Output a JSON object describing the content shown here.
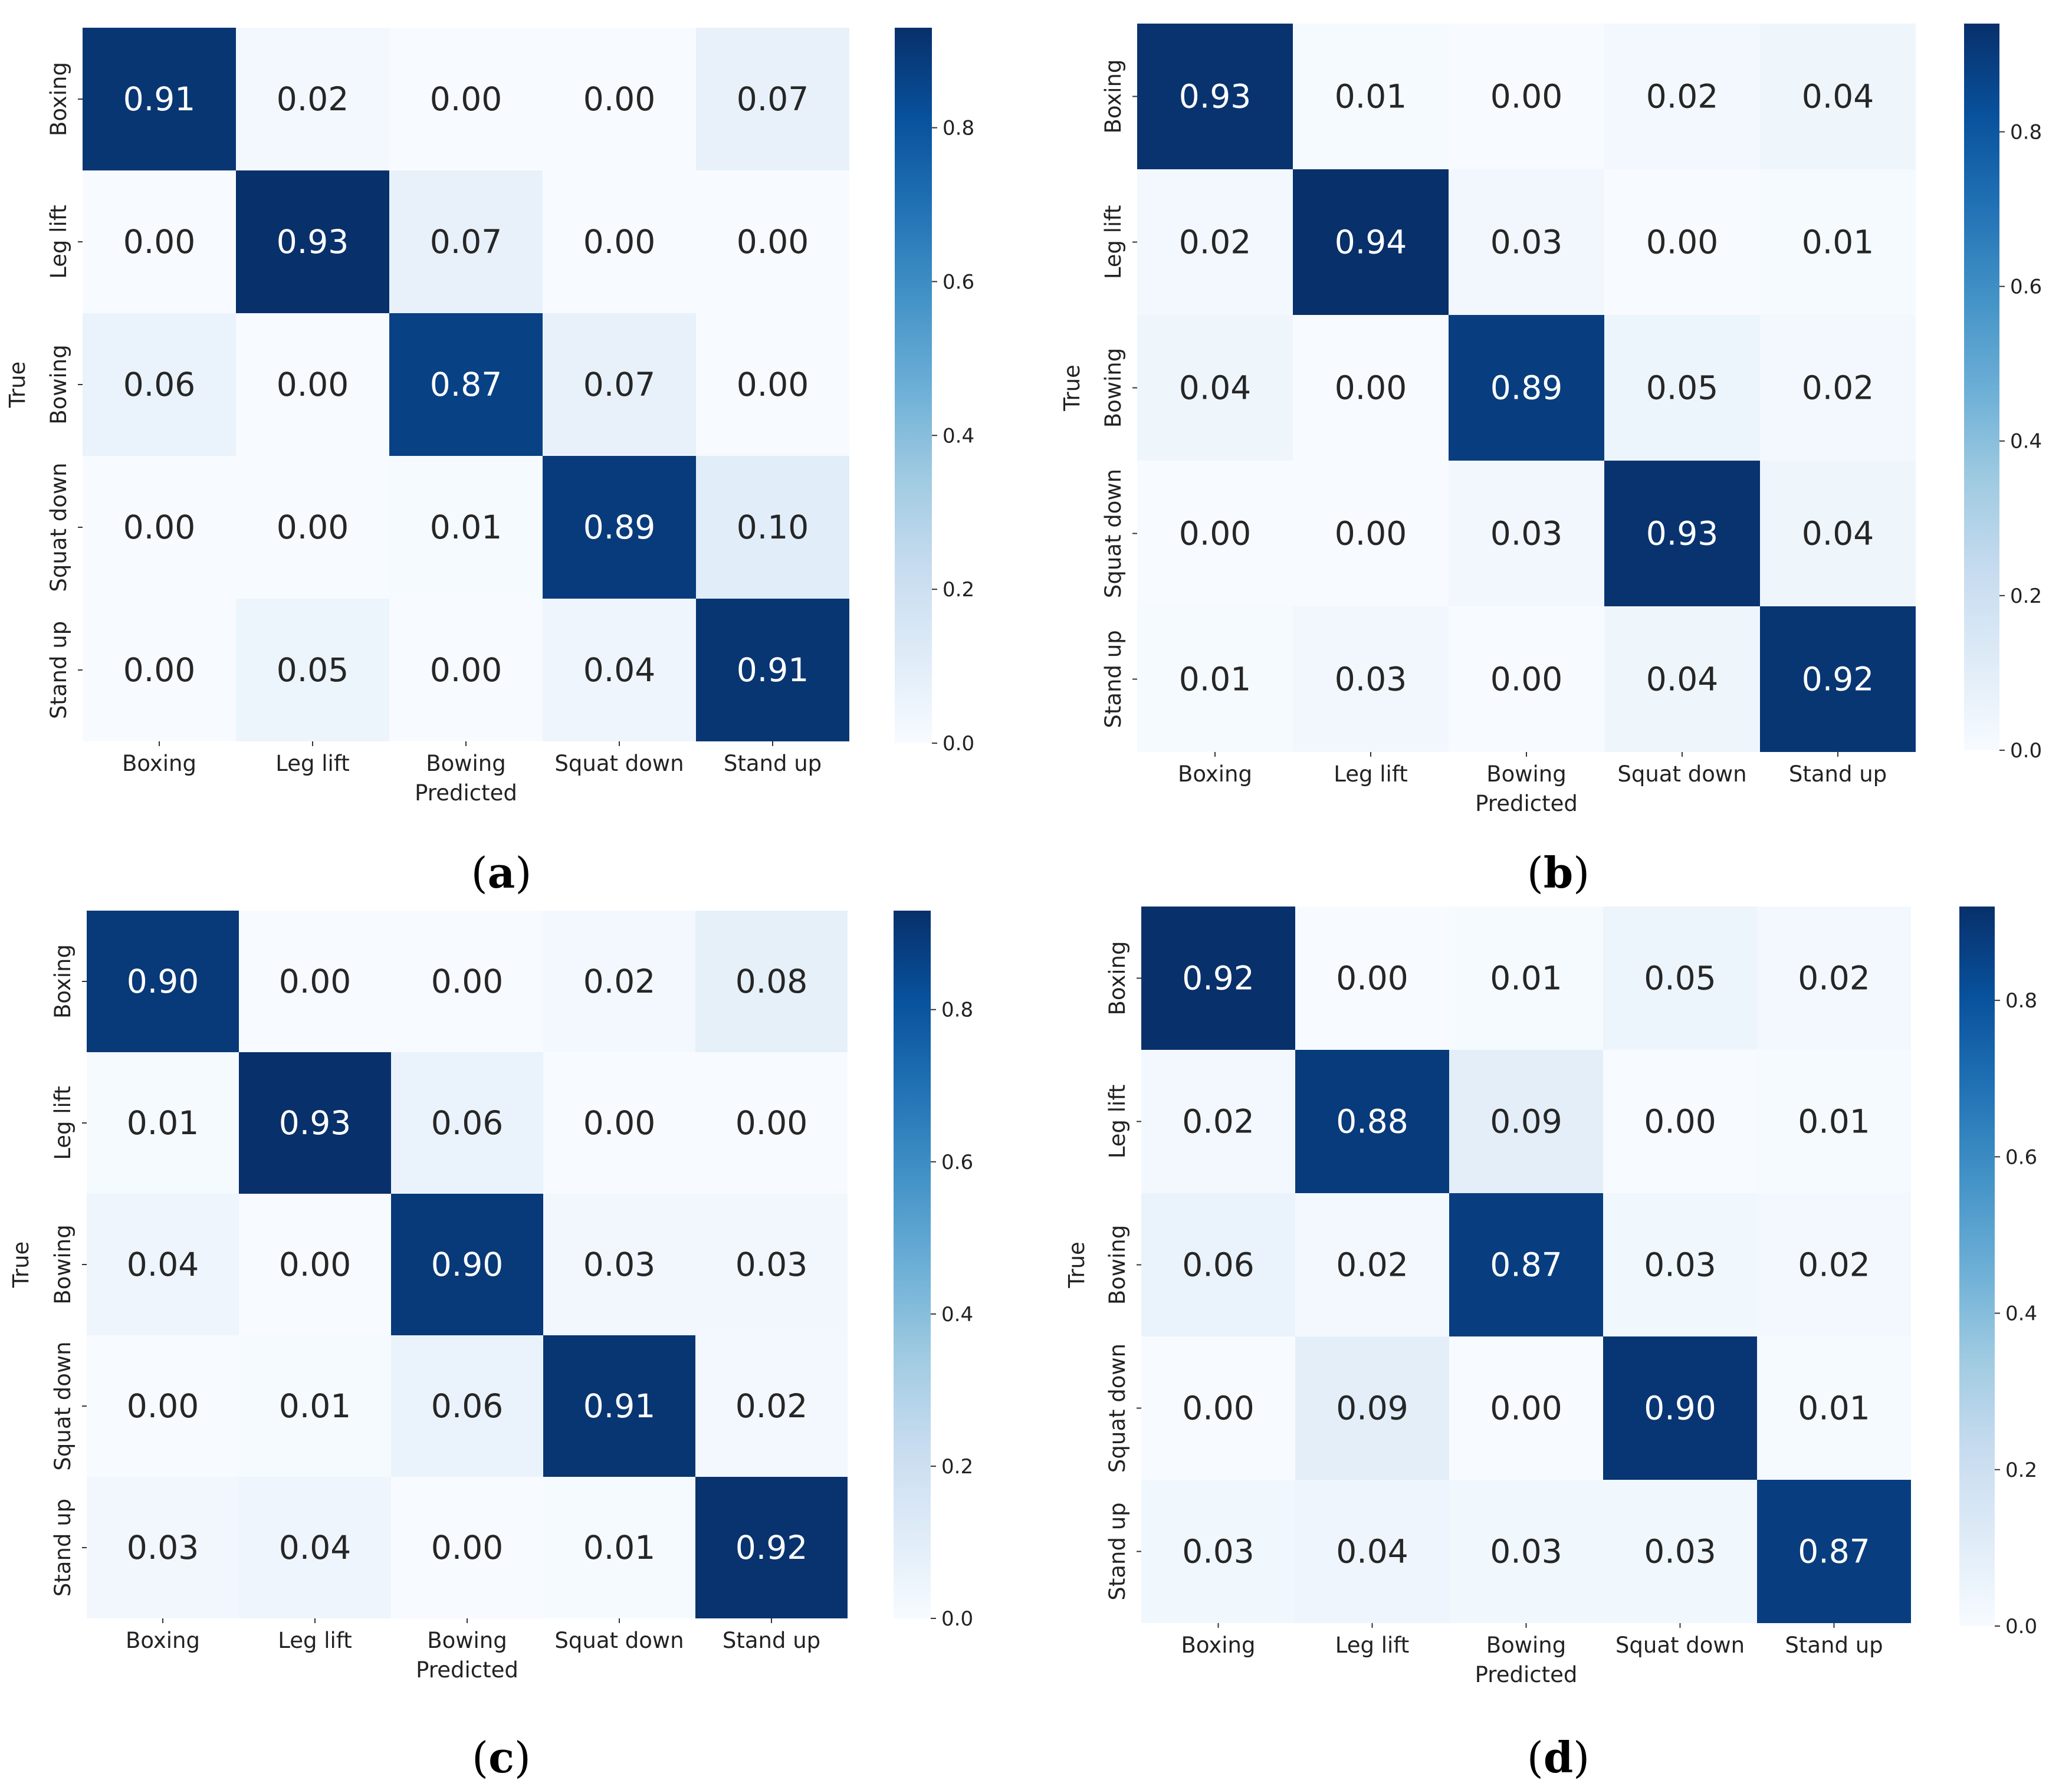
{
  "colors": {
    "low": "#f7fbff",
    "high": "#08306b",
    "text_dark": "#262626",
    "text_light": "#ffffff"
  },
  "chart_data": [
    {
      "type": "heatmap",
      "panel": "a",
      "caption": "(a)",
      "xlabel": "Predicted",
      "ylabel": "True",
      "categories": [
        "Boxing",
        "Leg lift",
        "Bowing",
        "Squat down",
        "Stand up"
      ],
      "values": [
        [
          0.91,
          0.02,
          0.0,
          0.0,
          0.07
        ],
        [
          0.0,
          0.93,
          0.07,
          0.0,
          0.0
        ],
        [
          0.06,
          0.0,
          0.87,
          0.07,
          0.0
        ],
        [
          0.0,
          0.0,
          0.01,
          0.89,
          0.1
        ],
        [
          0.0,
          0.05,
          0.0,
          0.04,
          0.91
        ]
      ],
      "colorbar_ticks": [
        "0.0",
        "0.2",
        "0.4",
        "0.6",
        "0.8"
      ],
      "colorbar_range": [
        0,
        0.93
      ]
    },
    {
      "type": "heatmap",
      "panel": "b",
      "caption": "(b)",
      "xlabel": "Predicted",
      "ylabel": "True",
      "categories": [
        "Boxing",
        "Leg lift",
        "Bowing",
        "Squat down",
        "Stand up"
      ],
      "values": [
        [
          0.93,
          0.01,
          0.0,
          0.02,
          0.04
        ],
        [
          0.02,
          0.94,
          0.03,
          0.0,
          0.01
        ],
        [
          0.04,
          0.0,
          0.89,
          0.05,
          0.02
        ],
        [
          0.0,
          0.0,
          0.03,
          0.93,
          0.04
        ],
        [
          0.01,
          0.03,
          0.0,
          0.04,
          0.92
        ]
      ],
      "colorbar_ticks": [
        "0.0",
        "0.2",
        "0.4",
        "0.6",
        "0.8"
      ],
      "colorbar_range": [
        0,
        0.94
      ]
    },
    {
      "type": "heatmap",
      "panel": "c",
      "caption": "(c)",
      "xlabel": "Predicted",
      "ylabel": "True",
      "categories": [
        "Boxing",
        "Leg lift",
        "Bowing",
        "Squat down",
        "Stand up"
      ],
      "values": [
        [
          0.9,
          0.0,
          0.0,
          0.02,
          0.08
        ],
        [
          0.01,
          0.93,
          0.06,
          0.0,
          0.0
        ],
        [
          0.04,
          0.0,
          0.9,
          0.03,
          0.03
        ],
        [
          0.0,
          0.01,
          0.06,
          0.91,
          0.02
        ],
        [
          0.03,
          0.04,
          0.0,
          0.01,
          0.92
        ]
      ],
      "colorbar_ticks": [
        "0.0",
        "0.2",
        "0.4",
        "0.6",
        "0.8"
      ],
      "colorbar_range": [
        0,
        0.93
      ]
    },
    {
      "type": "heatmap",
      "panel": "d",
      "caption": "(d)",
      "xlabel": "Predicted",
      "ylabel": "True",
      "categories": [
        "Boxing",
        "Leg lift",
        "Bowing",
        "Squat down",
        "Stand up"
      ],
      "values": [
        [
          0.92,
          0.0,
          0.01,
          0.05,
          0.02
        ],
        [
          0.02,
          0.88,
          0.09,
          0.0,
          0.01
        ],
        [
          0.06,
          0.02,
          0.87,
          0.03,
          0.02
        ],
        [
          0.0,
          0.09,
          0.0,
          0.9,
          0.01
        ],
        [
          0.03,
          0.04,
          0.03,
          0.03,
          0.87
        ]
      ],
      "colorbar_ticks": [
        "0.0",
        "0.2",
        "0.4",
        "0.6",
        "0.8"
      ],
      "colorbar_range": [
        0,
        0.92
      ]
    }
  ]
}
